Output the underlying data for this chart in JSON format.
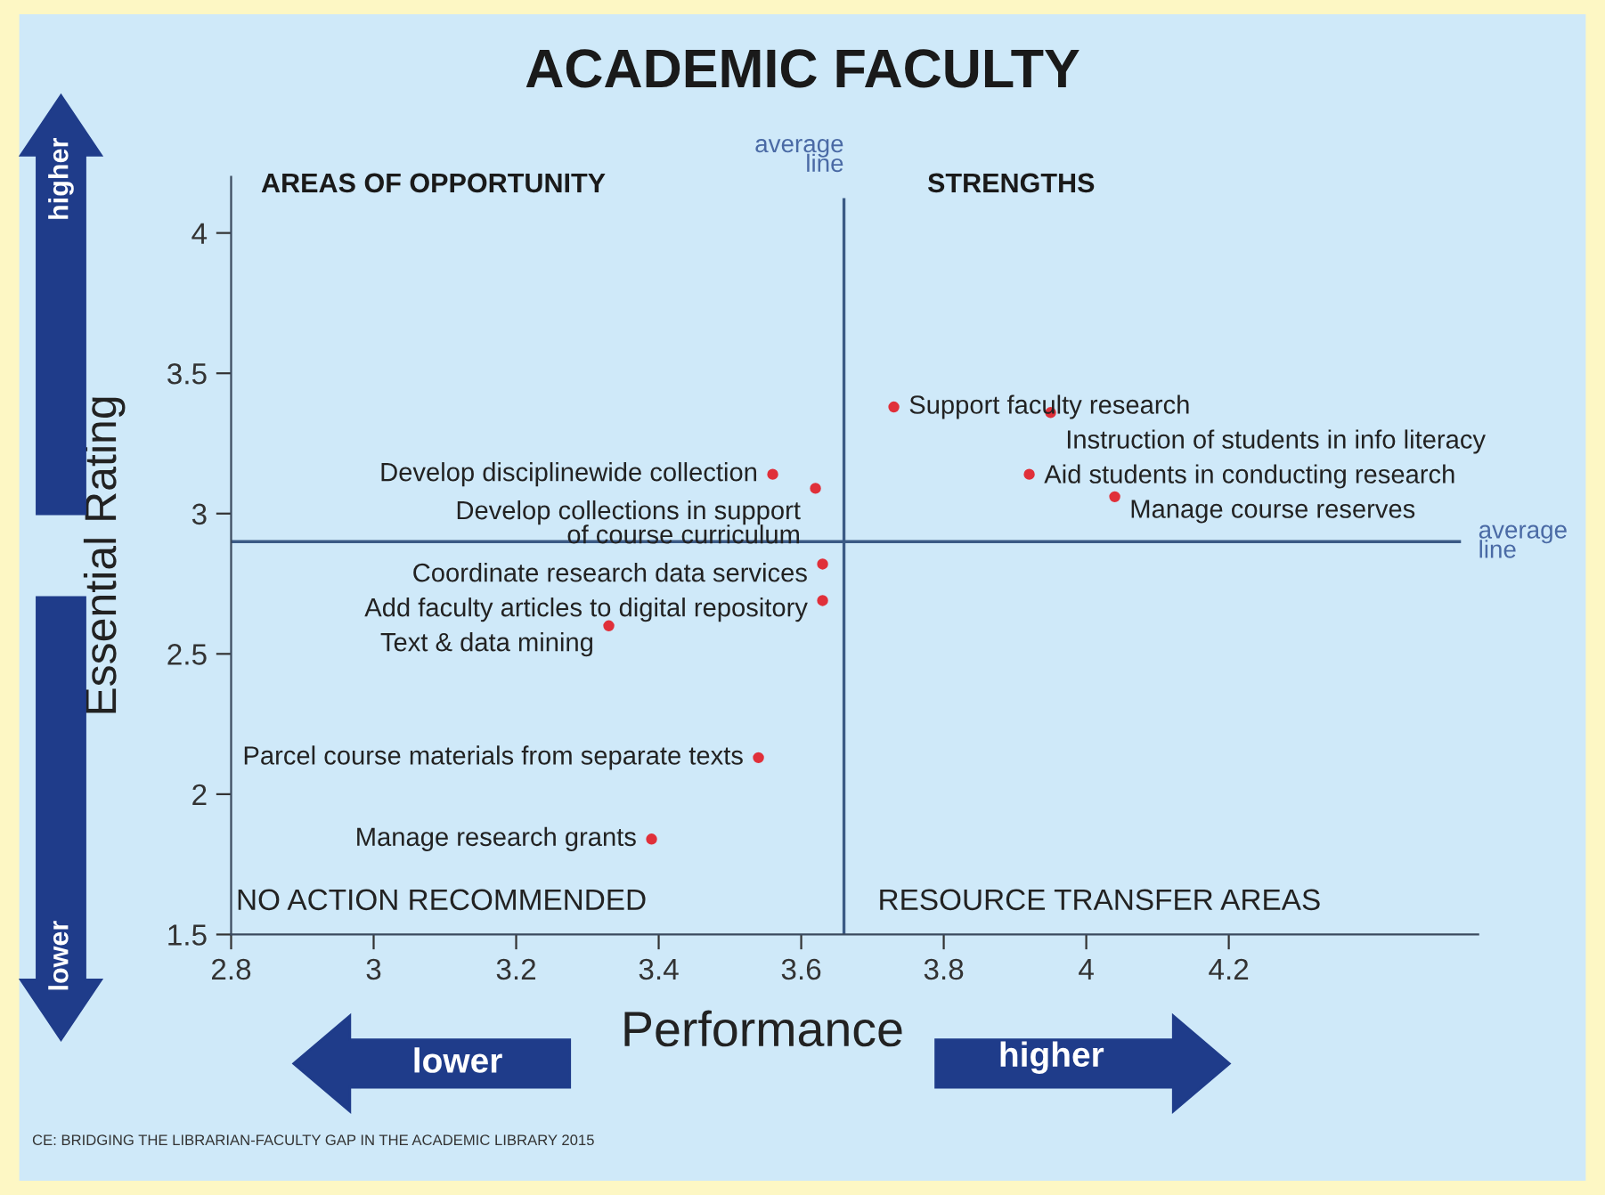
{
  "chart_data": {
    "type": "scatter",
    "title": "ACADEMIC FACULTY",
    "xlabel": "Performance",
    "ylabel": "Essential Rating",
    "x": [
      3.56,
      3.62,
      3.63,
      3.63,
      3.33,
      3.54,
      3.39,
      3.73,
      3.95,
      3.92,
      4.04
    ],
    "series": [
      {
        "color": "#e0303a",
        "values": [
          3.14,
          3.09,
          2.82,
          2.69,
          2.6,
          2.13,
          1.84,
          3.38,
          3.36,
          3.14,
          3.06
        ]
      }
    ],
    "marker": "circle",
    "xlim": [
      2.8,
      4.55
    ],
    "xticks": [
      2.8,
      3,
      3.2,
      3.4,
      3.6,
      3.8,
      4,
      4.2
    ],
    "ylim": [
      1.5,
      4.2
    ],
    "yticks": [
      1.5,
      2,
      2.5,
      3,
      3.5,
      4
    ],
    "grid": false,
    "legend": false,
    "ref_lines": [
      {
        "axis": "x",
        "value": 3.66,
        "label": "average\nline",
        "color": "#3b5a85"
      },
      {
        "axis": "y",
        "value": 2.9,
        "label": "average\nline",
        "color": "#3b5a85"
      }
    ],
    "annotations": [
      "AREAS OF OPPORTUNITY",
      "STRENGTHS",
      "NO ACTION RECOMMENDED",
      "RESOURCE TRANSFER AREAS",
      "higher",
      "lower",
      "lower",
      "higher",
      "CE: BRIDGING THE LIBRARIAN-FACULTY GAP IN THE ACADEMIC LIBRARY 2015",
      {
        "text": "Develop disciplinewide collection",
        "x": 3.56,
        "y": 3.14
      },
      {
        "text": "Develop collections in support\nof course curriculum",
        "x": 3.62,
        "y": 3.09
      },
      {
        "text": "Coordinate research data services",
        "x": 3.63,
        "y": 2.82
      },
      {
        "text": "Add faculty articles to digital repository",
        "x": 3.63,
        "y": 2.69
      },
      {
        "text": "Text & data mining",
        "x": 3.33,
        "y": 2.6
      },
      {
        "text": "Parcel course materials from separate texts",
        "x": 3.54,
        "y": 2.13
      },
      {
        "text": "Manage research grants",
        "x": 3.39,
        "y": 1.84
      },
      {
        "text": "Support faculty research",
        "x": 3.73,
        "y": 3.38
      },
      {
        "text": "Instruction of students in info literacy",
        "x": 3.95,
        "y": 3.36
      },
      {
        "text": "Aid students in conducting research",
        "x": 3.92,
        "y": 3.14
      },
      {
        "text": "Manage course reserves",
        "x": 4.04,
        "y": 3.06
      }
    ]
  }
}
